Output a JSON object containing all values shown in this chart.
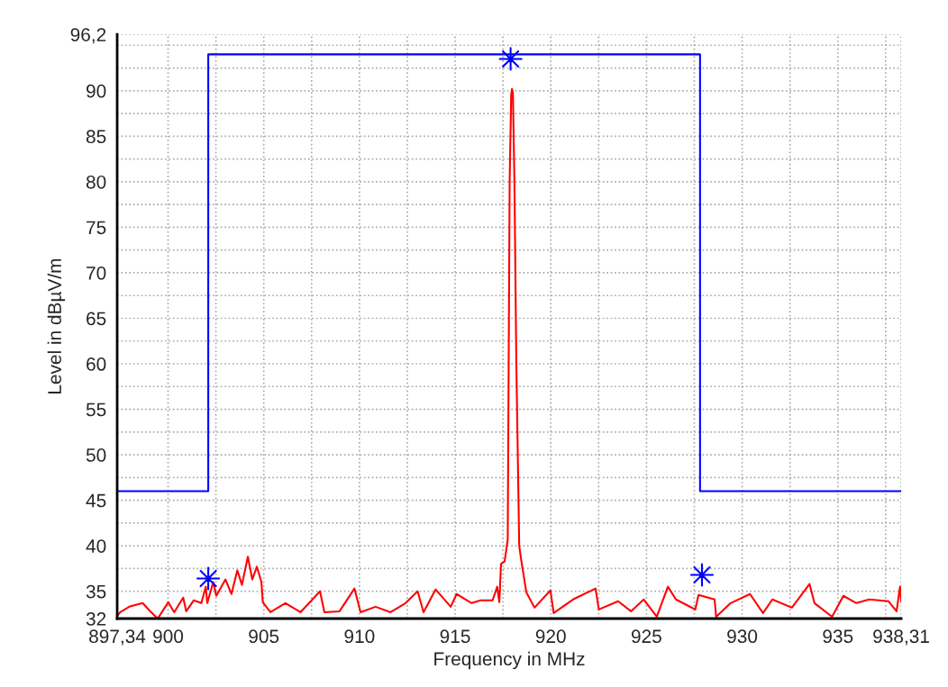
{
  "chart_data": {
    "type": "line",
    "xlabel": "Frequency in MHz",
    "ylabel": "Level in dBµV/m",
    "xlim": [
      897.34,
      938.31
    ],
    "ylim": [
      32,
      96.2
    ],
    "xticks": [
      {
        "value": 897.34,
        "label": "897,34"
      },
      900,
      {
        "value": 902.5,
        "label": null
      },
      905,
      {
        "value": 907.5,
        "label": null
      },
      910,
      {
        "value": 912.5,
        "label": null
      },
      915,
      {
        "value": 917.5,
        "label": null
      },
      920,
      {
        "value": 922.5,
        "label": null
      },
      925,
      {
        "value": 927.5,
        "label": null
      },
      930,
      {
        "value": 932.5,
        "label": null
      },
      935,
      {
        "value": 937.5,
        "label": null
      },
      {
        "value": 938.31,
        "label": "938,31"
      }
    ],
    "yticks": [
      32,
      35,
      {
        "value": 37.5,
        "label": null
      },
      40,
      {
        "value": 42.5,
        "label": null
      },
      45,
      {
        "value": 47.5,
        "label": null
      },
      50,
      {
        "value": 52.5,
        "label": null
      },
      55,
      {
        "value": 57.5,
        "label": null
      },
      60,
      {
        "value": 62.5,
        "label": null
      },
      65,
      {
        "value": 67.5,
        "label": null
      },
      70,
      {
        "value": 72.5,
        "label": null
      },
      75,
      {
        "value": 77.5,
        "label": null
      },
      80,
      {
        "value": 82.5,
        "label": null
      },
      85,
      {
        "value": 87.5,
        "label": null
      },
      90,
      {
        "value": 92.5,
        "label": null
      },
      {
        "value": 95,
        "label": null
      },
      {
        "value": 96.2,
        "label": "96,2"
      }
    ],
    "grid": true,
    "series": [
      {
        "type": "step",
        "color": "#0000ff",
        "x": [
          897.34,
          902.1,
          927.8,
          938.31
        ],
        "values": [
          46,
          94,
          46,
          46
        ]
      },
      {
        "color": "#ff0000",
        "x": [
          897.34,
          897.5,
          897.97,
          898.67,
          899.07,
          899.46,
          900.01,
          900.32,
          900.79,
          900.95,
          901.34,
          901.74,
          901.97,
          902.05,
          902.36,
          902.52,
          903.0,
          903.31,
          903.62,
          903.86,
          904.17,
          904.4,
          904.64,
          904.88,
          904.95,
          905.35,
          906.13,
          906.92,
          907.94,
          908.17,
          908.96,
          909.74,
          910.06,
          910.84,
          911.63,
          912.41,
          913.04,
          913.35,
          913.98,
          914.77,
          915.08,
          915.86,
          916.34,
          916.96,
          917.2,
          917.31,
          917.4,
          917.59,
          917.75,
          917.85,
          917.93,
          917.97,
          918.02,
          918.1,
          918.2,
          918.35,
          918.45,
          918.72,
          919.15,
          919.98,
          920.15,
          921.16,
          922.34,
          922.51,
          923.52,
          924.19,
          924.86,
          925.54,
          926.12,
          926.54,
          927.55,
          927.72,
          928.56,
          928.64,
          929.4,
          930.41,
          931.09,
          931.58,
          932.6,
          933.52,
          933.78,
          934.7,
          935.29,
          935.97,
          936.64,
          937.65,
          938.07,
          938.25,
          938.31
        ],
        "values": [
          32.3,
          32.7,
          33.3,
          33.7,
          32.8,
          32.0,
          33.8,
          32.7,
          34.3,
          32.8,
          34.0,
          33.7,
          35.5,
          33.7,
          36.0,
          34.5,
          36.3,
          34.7,
          37.3,
          35.7,
          38.8,
          36.3,
          37.7,
          36.0,
          33.8,
          32.7,
          33.7,
          32.7,
          35.0,
          32.7,
          32.8,
          35.3,
          32.7,
          33.3,
          32.7,
          33.7,
          35.0,
          32.7,
          35.2,
          33.3,
          34.7,
          33.7,
          34.0,
          34.0,
          35.5,
          33.8,
          38.0,
          38.3,
          40.7,
          80,
          89.5,
          90.2,
          89.8,
          80,
          60,
          40,
          38.5,
          34.9,
          33.2,
          35.1,
          32.6,
          34.1,
          35.3,
          33.0,
          33.9,
          32.8,
          34.1,
          32.2,
          35.5,
          34.1,
          33.0,
          34.6,
          34.1,
          32.2,
          33.7,
          34.7,
          32.6,
          34.1,
          33.2,
          35.8,
          33.7,
          32.2,
          34.5,
          33.7,
          34.1,
          33.9,
          32.8,
          35.5,
          33.9
        ]
      },
      {
        "type": "scatter",
        "color": "#0000ff",
        "marker": "star",
        "x": [
          902.1,
          917.9,
          927.9
        ],
        "values": [
          36.4,
          93.5,
          36.8
        ]
      }
    ]
  }
}
